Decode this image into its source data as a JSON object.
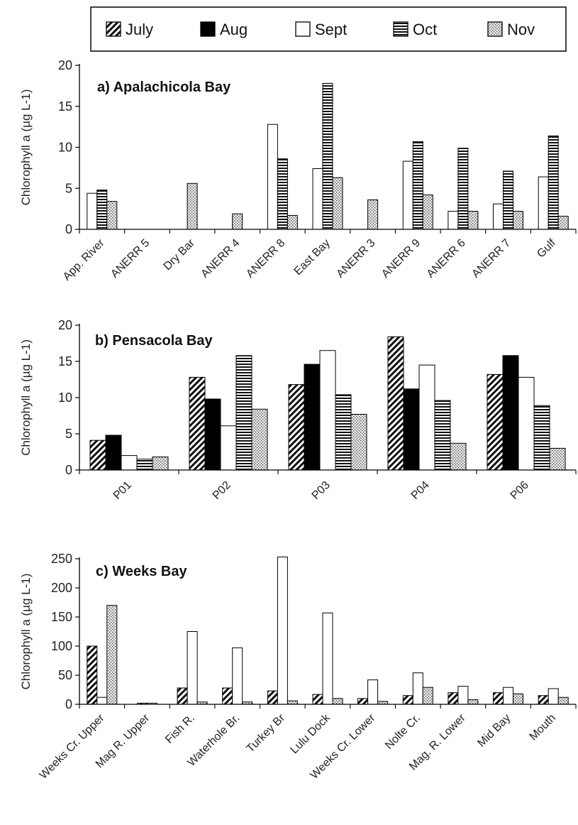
{
  "legend": {
    "items": [
      {
        "label": "July",
        "pattern": "diag"
      },
      {
        "label": "Aug",
        "pattern": "solid"
      },
      {
        "label": "Sept",
        "pattern": "empty"
      },
      {
        "label": "Oct",
        "pattern": "hlines"
      },
      {
        "label": "Nov",
        "pattern": "dots"
      }
    ]
  },
  "chart_data": [
    {
      "type": "bar",
      "title": "a) Apalachicola Bay",
      "ylabel": "Chlorophyll a (µg L-1)",
      "ylim": [
        0,
        20
      ],
      "yticks": [
        0,
        5,
        10,
        15,
        20
      ],
      "categories": [
        "App. River",
        "ANERR 5",
        "Dry Bar",
        "ANERR 4",
        "ANERR 8",
        "East Bay",
        "ANERR 3",
        "ANERR 9",
        "ANERR 6",
        "ANERR 7",
        "Gulf"
      ],
      "series": [
        {
          "name": "July",
          "values": [
            null,
            null,
            null,
            null,
            null,
            null,
            null,
            null,
            null,
            null,
            null
          ]
        },
        {
          "name": "Aug",
          "values": [
            null,
            null,
            null,
            null,
            null,
            null,
            null,
            null,
            null,
            null,
            null
          ]
        },
        {
          "name": "Sept",
          "values": [
            4.4,
            null,
            null,
            null,
            12.8,
            7.4,
            null,
            8.3,
            2.2,
            3.1,
            6.4
          ]
        },
        {
          "name": "Oct",
          "values": [
            4.8,
            null,
            null,
            null,
            8.6,
            17.8,
            null,
            10.7,
            9.9,
            7.1,
            11.4
          ]
        },
        {
          "name": "Nov",
          "values": [
            3.4,
            null,
            5.6,
            1.9,
            1.7,
            6.3,
            3.6,
            4.2,
            2.2,
            2.2,
            1.6
          ]
        }
      ],
      "grid": false
    },
    {
      "type": "bar",
      "title": "b) Pensacola Bay",
      "ylabel": "Chlorophyll a (µg L-1)",
      "ylim": [
        0,
        20
      ],
      "yticks": [
        0,
        5,
        10,
        15,
        20
      ],
      "categories": [
        "P01",
        "P02",
        "P03",
        "P04",
        "P06"
      ],
      "series": [
        {
          "name": "July",
          "values": [
            4.1,
            12.8,
            11.8,
            18.4,
            13.2
          ]
        },
        {
          "name": "Aug",
          "values": [
            4.8,
            9.8,
            14.6,
            11.2,
            15.8
          ]
        },
        {
          "name": "Sept",
          "values": [
            2.0,
            6.1,
            16.5,
            14.5,
            12.8
          ]
        },
        {
          "name": "Oct",
          "values": [
            1.5,
            15.8,
            10.4,
            9.6,
            8.9
          ]
        },
        {
          "name": "Nov",
          "values": [
            1.8,
            8.4,
            7.7,
            3.7,
            3.0
          ]
        }
      ],
      "grid": false
    },
    {
      "type": "bar",
      "title": "c) Weeks Bay",
      "ylabel": "Chlorophyll a (µg L-1)",
      "ylim": [
        0,
        250
      ],
      "yticks": [
        0,
        50,
        100,
        150,
        200,
        250
      ],
      "categories": [
        "Weeks Cr. Upper",
        "Mag R. Upper",
        "Fish R.",
        "Waterhole Br.",
        "Turkey Br",
        "Lulu Dock",
        "Weeks Cr. Lower",
        "Nolte Cr.",
        "Mag. R. Lower",
        "Mid Bay",
        "Mouth"
      ],
      "series": [
        {
          "name": "July",
          "values": [
            100,
            2,
            28,
            28,
            23,
            17,
            10,
            15,
            20,
            20,
            15
          ]
        },
        {
          "name": "Aug",
          "values": [
            null,
            null,
            null,
            null,
            null,
            null,
            null,
            null,
            null,
            null,
            null
          ]
        },
        {
          "name": "Sept",
          "values": [
            12,
            2,
            125,
            97,
            253,
            157,
            42,
            54,
            31,
            29,
            27
          ]
        },
        {
          "name": "Oct",
          "values": [
            null,
            null,
            null,
            null,
            null,
            null,
            null,
            null,
            null,
            null,
            null
          ]
        },
        {
          "name": "Nov",
          "values": [
            170,
            null,
            4,
            4,
            6,
            10,
            5,
            29,
            8,
            18,
            12
          ]
        }
      ],
      "grid": false
    }
  ]
}
